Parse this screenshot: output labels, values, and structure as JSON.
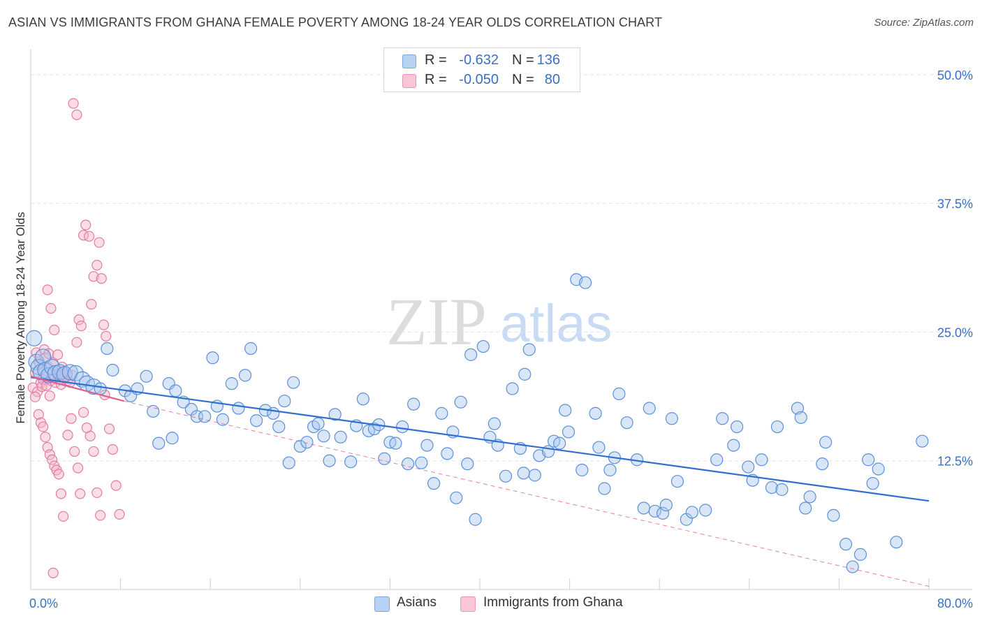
{
  "title": "ASIAN VS IMMIGRANTS FROM GHANA FEMALE POVERTY AMONG 18-24 YEAR OLDS CORRELATION CHART",
  "source": "Source: ZipAtlas.com",
  "watermark": {
    "zip": "ZIP",
    "atlas": "atlas"
  },
  "legend": {
    "r_label": "R =",
    "n_label": "N =",
    "rows": [
      {
        "r": "-0.632",
        "n": "136",
        "color": "#a9c8f0"
      },
      {
        "r": "-0.050",
        "n": "80",
        "color": "#f5b4c9"
      }
    ]
  },
  "bottom_legend": [
    {
      "label": "Asians",
      "color": "#a9c8f0"
    },
    {
      "label": "Immigrants from Ghana",
      "color": "#f5b4c9"
    }
  ],
  "colors": {
    "asians_fill": "#a9c8f0",
    "asians_stroke": "#5b8fd9",
    "asians_line": "#2e6fd0",
    "ghana_fill": "#f5b4c9",
    "ghana_stroke": "#e47ba0",
    "ghana_line": "#e0608c",
    "tick_text": "#3a6fc4",
    "grid": "#e3e3e3"
  },
  "chart_data": {
    "type": "scatter",
    "title": "ASIAN VS IMMIGRANTS FROM GHANA FEMALE POVERTY AMONG 18-24 YEAR OLDS CORRELATION CHART",
    "xlabel": "",
    "ylabel": "Female Poverty Among 18-24 Year Olds",
    "xlim": [
      0,
      80
    ],
    "ylim": [
      0,
      52.5
    ],
    "x_tick_labels": [
      {
        "value": 0,
        "label": "0.0%"
      },
      {
        "value": 80,
        "label": "80.0%"
      }
    ],
    "y_tick_labels": [
      {
        "value": 12.5,
        "label": "12.5%"
      },
      {
        "value": 25,
        "label": "25.0%"
      },
      {
        "value": 37.5,
        "label": "37.5%"
      },
      {
        "value": 50,
        "label": "50.0%"
      }
    ],
    "grid": true,
    "legend_position": "top-center",
    "series": [
      {
        "name": "Asians",
        "r": -0.632,
        "n": 136,
        "trend": {
          "x0": 0,
          "y0": 20.6,
          "x1": 80,
          "y1": 8.6
        },
        "points": [
          [
            0.3,
            24.4
          ],
          [
            0.5,
            22.1
          ],
          [
            0.7,
            21.6
          ],
          [
            0.9,
            21.1
          ],
          [
            1.1,
            22.6
          ],
          [
            1.3,
            21.3
          ],
          [
            1.6,
            20.8
          ],
          [
            1.9,
            21.6
          ],
          [
            2.2,
            21.0
          ],
          [
            2.6,
            21.1
          ],
          [
            3.0,
            20.9
          ],
          [
            3.5,
            21.1
          ],
          [
            4.0,
            21.0
          ],
          [
            4.6,
            20.4
          ],
          [
            5.0,
            20.0
          ],
          [
            5.6,
            19.7
          ],
          [
            6.2,
            19.5
          ],
          [
            6.8,
            23.4
          ],
          [
            7.3,
            21.3
          ],
          [
            8.4,
            19.3
          ],
          [
            8.9,
            18.8
          ],
          [
            9.5,
            19.5
          ],
          [
            10.3,
            20.7
          ],
          [
            10.9,
            17.3
          ],
          [
            11.4,
            14.2
          ],
          [
            12.3,
            20.0
          ],
          [
            12.6,
            14.7
          ],
          [
            12.9,
            19.3
          ],
          [
            13.6,
            18.2
          ],
          [
            14.3,
            17.5
          ],
          [
            14.8,
            16.8
          ],
          [
            15.5,
            16.8
          ],
          [
            16.2,
            22.5
          ],
          [
            16.6,
            17.8
          ],
          [
            17.1,
            16.5
          ],
          [
            17.9,
            20.0
          ],
          [
            18.5,
            17.6
          ],
          [
            19.1,
            20.8
          ],
          [
            19.6,
            23.4
          ],
          [
            20.1,
            16.4
          ],
          [
            20.9,
            17.4
          ],
          [
            21.6,
            17.1
          ],
          [
            22.1,
            15.8
          ],
          [
            22.6,
            18.3
          ],
          [
            23.0,
            12.3
          ],
          [
            23.4,
            20.1
          ],
          [
            24.0,
            13.9
          ],
          [
            24.6,
            14.3
          ],
          [
            25.2,
            15.8
          ],
          [
            25.6,
            16.1
          ],
          [
            26.1,
            14.9
          ],
          [
            26.6,
            12.5
          ],
          [
            27.1,
            17.0
          ],
          [
            27.6,
            14.8
          ],
          [
            28.5,
            12.4
          ],
          [
            29.0,
            15.9
          ],
          [
            29.6,
            18.5
          ],
          [
            30.1,
            15.4
          ],
          [
            30.6,
            15.6
          ],
          [
            31.0,
            16.0
          ],
          [
            31.5,
            12.7
          ],
          [
            32.0,
            14.3
          ],
          [
            32.5,
            14.2
          ],
          [
            33.1,
            15.8
          ],
          [
            33.6,
            12.2
          ],
          [
            34.1,
            18.0
          ],
          [
            34.8,
            12.3
          ],
          [
            35.3,
            14.0
          ],
          [
            35.9,
            10.3
          ],
          [
            36.6,
            17.1
          ],
          [
            37.1,
            13.2
          ],
          [
            37.6,
            15.3
          ],
          [
            37.9,
            8.9
          ],
          [
            38.3,
            18.2
          ],
          [
            38.9,
            12.2
          ],
          [
            39.2,
            22.8
          ],
          [
            39.6,
            6.8
          ],
          [
            40.3,
            23.6
          ],
          [
            40.9,
            14.8
          ],
          [
            41.3,
            16.1
          ],
          [
            41.6,
            14.0
          ],
          [
            42.3,
            11.0
          ],
          [
            42.9,
            19.5
          ],
          [
            43.6,
            13.7
          ],
          [
            43.9,
            11.3
          ],
          [
            44.0,
            20.9
          ],
          [
            44.4,
            23.3
          ],
          [
            44.9,
            11.1
          ],
          [
            45.3,
            13.0
          ],
          [
            46.1,
            13.4
          ],
          [
            46.6,
            14.4
          ],
          [
            47.1,
            14.2
          ],
          [
            47.6,
            17.4
          ],
          [
            47.9,
            15.3
          ],
          [
            48.6,
            30.1
          ],
          [
            49.1,
            11.6
          ],
          [
            49.4,
            29.8
          ],
          [
            50.3,
            17.1
          ],
          [
            50.6,
            13.8
          ],
          [
            51.1,
            9.8
          ],
          [
            51.6,
            11.6
          ],
          [
            52.0,
            12.8
          ],
          [
            52.4,
            19.0
          ],
          [
            53.1,
            16.2
          ],
          [
            54.0,
            12.6
          ],
          [
            54.6,
            7.9
          ],
          [
            55.1,
            17.6
          ],
          [
            55.6,
            7.6
          ],
          [
            56.3,
            7.4
          ],
          [
            56.6,
            8.2
          ],
          [
            57.1,
            16.6
          ],
          [
            57.6,
            10.5
          ],
          [
            58.4,
            6.8
          ],
          [
            58.9,
            7.5
          ],
          [
            60.1,
            7.7
          ],
          [
            61.1,
            12.6
          ],
          [
            61.6,
            16.6
          ],
          [
            62.6,
            14.0
          ],
          [
            62.9,
            15.8
          ],
          [
            63.9,
            11.9
          ],
          [
            64.3,
            10.6
          ],
          [
            65.1,
            12.6
          ],
          [
            66.0,
            9.9
          ],
          [
            66.5,
            15.8
          ],
          [
            66.9,
            9.7
          ],
          [
            68.3,
            17.6
          ],
          [
            68.6,
            16.7
          ],
          [
            69.0,
            7.9
          ],
          [
            69.4,
            9.0
          ],
          [
            70.5,
            12.2
          ],
          [
            70.8,
            14.3
          ],
          [
            71.5,
            7.2
          ],
          [
            72.6,
            4.4
          ],
          [
            73.2,
            2.2
          ],
          [
            73.9,
            3.4
          ],
          [
            74.6,
            12.6
          ],
          [
            75.0,
            10.3
          ],
          [
            75.5,
            11.7
          ],
          [
            79.4,
            14.4
          ],
          [
            77.1,
            4.6
          ]
        ]
      },
      {
        "name": "Immigrants from Ghana",
        "r": -0.05,
        "n": 80,
        "trend": {
          "x0": 0,
          "y0": 20.7,
          "x1": 8.3,
          "y1": 18.3,
          "dashed_x1": 80,
          "dashed_y1": 0.3
        },
        "points": [
          [
            0.2,
            19.6
          ],
          [
            0.4,
            21.1
          ],
          [
            0.5,
            23.0
          ],
          [
            0.6,
            19.2
          ],
          [
            0.7,
            22.1
          ],
          [
            0.8,
            21.9
          ],
          [
            0.9,
            20.1
          ],
          [
            1.0,
            19.7
          ],
          [
            1.1,
            20.4
          ],
          [
            1.2,
            23.3
          ],
          [
            1.3,
            22.5
          ],
          [
            1.4,
            19.8
          ],
          [
            1.5,
            21.7
          ],
          [
            1.6,
            22.9
          ],
          [
            1.7,
            18.8
          ],
          [
            1.8,
            20.3
          ],
          [
            1.9,
            20.9
          ],
          [
            2.0,
            22.0
          ],
          [
            2.1,
            20.6
          ],
          [
            2.2,
            20.1
          ],
          [
            2.3,
            21.3
          ],
          [
            2.4,
            22.8
          ],
          [
            2.5,
            21.0
          ],
          [
            2.6,
            20.4
          ],
          [
            2.7,
            19.9
          ],
          [
            2.8,
            21.6
          ],
          [
            2.9,
            20.9
          ],
          [
            3.0,
            20.5
          ],
          [
            3.1,
            21.2
          ],
          [
            3.3,
            20.3
          ],
          [
            3.5,
            20.1
          ],
          [
            3.7,
            20.8
          ],
          [
            3.8,
            47.2
          ],
          [
            4.1,
            24.0
          ],
          [
            4.3,
            26.2
          ],
          [
            4.5,
            25.6
          ],
          [
            4.7,
            34.4
          ],
          [
            4.9,
            35.4
          ],
          [
            5.2,
            34.3
          ],
          [
            5.4,
            27.7
          ],
          [
            5.6,
            30.4
          ],
          [
            5.9,
            31.5
          ],
          [
            6.1,
            33.7
          ],
          [
            6.3,
            30.2
          ],
          [
            6.5,
            25.7
          ],
          [
            6.7,
            24.6
          ],
          [
            4.1,
            46.1
          ],
          [
            1.5,
            29.1
          ],
          [
            1.8,
            27.3
          ],
          [
            2.1,
            25.2
          ],
          [
            0.4,
            18.7
          ],
          [
            0.7,
            17.0
          ],
          [
            0.9,
            16.2
          ],
          [
            1.1,
            15.8
          ],
          [
            1.3,
            14.8
          ],
          [
            1.5,
            13.8
          ],
          [
            1.7,
            13.1
          ],
          [
            1.9,
            12.6
          ],
          [
            2.1,
            12.0
          ],
          [
            2.3,
            11.6
          ],
          [
            2.5,
            11.2
          ],
          [
            2.7,
            9.3
          ],
          [
            2.9,
            7.1
          ],
          [
            3.3,
            15.0
          ],
          [
            3.6,
            16.6
          ],
          [
            3.9,
            13.4
          ],
          [
            4.2,
            11.8
          ],
          [
            4.4,
            9.3
          ],
          [
            4.7,
            17.2
          ],
          [
            5.0,
            15.7
          ],
          [
            5.3,
            14.9
          ],
          [
            5.6,
            13.4
          ],
          [
            5.9,
            9.4
          ],
          [
            6.2,
            7.2
          ],
          [
            6.6,
            18.9
          ],
          [
            7.0,
            15.6
          ],
          [
            7.3,
            13.6
          ],
          [
            7.6,
            10.1
          ],
          [
            7.9,
            7.3
          ],
          [
            2.0,
            1.6
          ]
        ]
      }
    ]
  }
}
